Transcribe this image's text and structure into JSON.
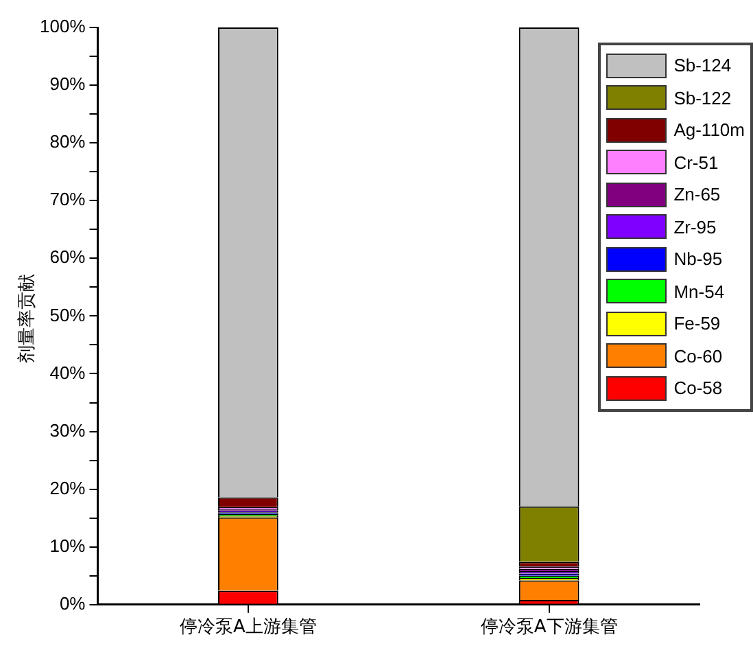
{
  "chart_data": {
    "type": "bar",
    "stacked": true,
    "ylabel": "剂量率贡献",
    "categories": [
      "停冷泵A上游集管",
      "停冷泵A下游集管"
    ],
    "ylim": [
      0,
      100
    ],
    "yticks": [
      {
        "value": 0,
        "label": "0%"
      },
      {
        "value": 5,
        "label": null
      },
      {
        "value": 10,
        "label": "10%"
      },
      {
        "value": 15,
        "label": null
      },
      {
        "value": 20,
        "label": "20%"
      },
      {
        "value": 25,
        "label": null
      },
      {
        "value": 30,
        "label": "30%"
      },
      {
        "value": 35,
        "label": null
      },
      {
        "value": 40,
        "label": "40%"
      },
      {
        "value": 45,
        "label": null
      },
      {
        "value": 50,
        "label": "50%"
      },
      {
        "value": 55,
        "label": null
      },
      {
        "value": 60,
        "label": "60%"
      },
      {
        "value": 65,
        "label": null
      },
      {
        "value": 70,
        "label": "70%"
      },
      {
        "value": 75,
        "label": null
      },
      {
        "value": 80,
        "label": "80%"
      },
      {
        "value": 85,
        "label": null
      },
      {
        "value": 90,
        "label": "90%"
      },
      {
        "value": 95,
        "label": null
      },
      {
        "value": 100,
        "label": "100%"
      }
    ],
    "legend": "top right",
    "grid": false,
    "series": [
      {
        "name": "Co-58",
        "color": "#ff0000",
        "values": [
          2.4,
          0.8
        ]
      },
      {
        "name": "Co-60",
        "color": "#ff8000",
        "values": [
          12.7,
          3.4
        ]
      },
      {
        "name": "Fe-59",
        "color": "#ffff00",
        "values": [
          0.3,
          0.4
        ]
      },
      {
        "name": "Mn-54",
        "color": "#00ff00",
        "values": [
          0.3,
          0.4
        ]
      },
      {
        "name": "Nb-95",
        "color": "#0000ff",
        "values": [
          0.3,
          0.4
        ]
      },
      {
        "name": "Zr-95",
        "color": "#8000ff",
        "values": [
          0.3,
          0.4
        ]
      },
      {
        "name": "Zn-65",
        "color": "#800080",
        "values": [
          0.3,
          0.4
        ]
      },
      {
        "name": "Cr-51",
        "color": "#ff80ff",
        "values": [
          0.3,
          0.4
        ]
      },
      {
        "name": "Ag-110m",
        "color": "#800000",
        "values": [
          1.7,
          0.8
        ]
      },
      {
        "name": "Sb-122",
        "color": "#808000",
        "values": [
          0,
          9.6
        ]
      },
      {
        "name": "Sb-124",
        "color": "#c0c0c0",
        "values": [
          81.4,
          83.0
        ]
      }
    ]
  }
}
